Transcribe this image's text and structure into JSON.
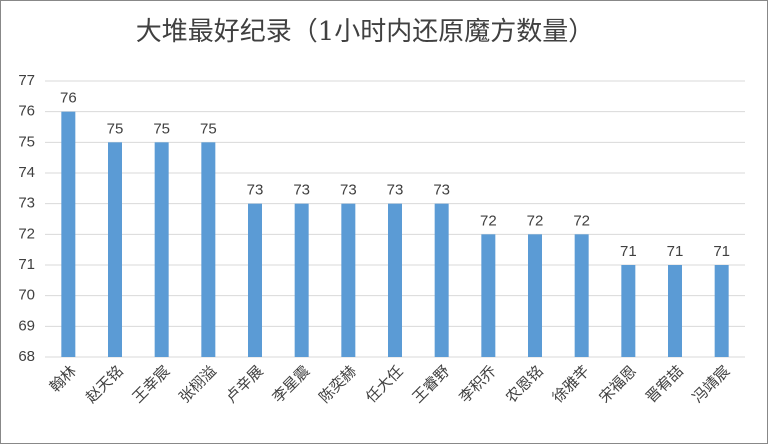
{
  "chart_data": {
    "type": "bar",
    "title": "大堆最好纪录（1小时内还原魔方数量）",
    "categories": [
      "翰林",
      "赵天铭",
      "王幸宸",
      "张栩溢",
      "卢辛展",
      "李星震",
      "陈奕赫",
      "任大任",
      "王睿野",
      "李积乔",
      "农恩铭",
      "徐雅芊",
      "宋福恩",
      "晋宥喆",
      "冯靖宸"
    ],
    "values": [
      76,
      75,
      75,
      75,
      73,
      73,
      73,
      73,
      73,
      72,
      72,
      72,
      71,
      71,
      71
    ],
    "color": "#5b9bd5",
    "ylim": [
      68,
      77
    ],
    "yticks": [
      68,
      69,
      70,
      71,
      72,
      73,
      74,
      75,
      76,
      77
    ],
    "grid": true
  }
}
